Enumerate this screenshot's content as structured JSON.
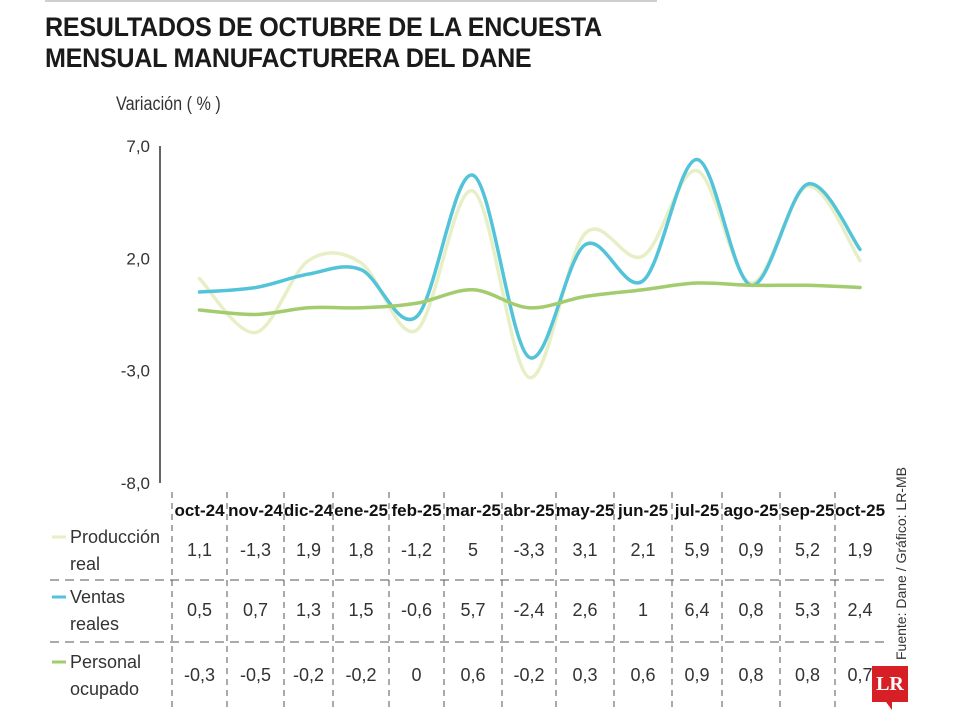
{
  "title_line1": "RESULTADOS DE OCTUBRE DE LA ENCUESTA",
  "title_line2": "MENSUAL MANUFACTURERA DEL DANE",
  "source": "Fuente: Dane / Gráfico: LR-MB",
  "logo": "LR",
  "chart_data": {
    "type": "line",
    "ylabel": "Variación ( % )",
    "ylim": [
      -8.0,
      7.0
    ],
    "yticks": [
      "7,0",
      "2,0",
      "-3,0",
      "-8,0"
    ],
    "yticks_values": [
      7,
      2,
      -3,
      -8
    ],
    "categories": [
      "oct-24",
      "nov-24",
      "dic-24",
      "ene-25",
      "feb-25",
      "mar-25",
      "abr-25",
      "may-25",
      "jun-25",
      "jul-25",
      "ago-25",
      "sep-25",
      "oct-25"
    ],
    "series": [
      {
        "name": "Producción real",
        "color": "#e6efc6",
        "values": [
          1.1,
          -1.3,
          1.9,
          1.8,
          -1.2,
          5,
          -3.3,
          3.1,
          2.1,
          5.9,
          0.9,
          5.2,
          1.9
        ],
        "labels": [
          "1,1",
          "-1,3",
          "1,9",
          "1,8",
          "-1,2",
          "5",
          "-3,3",
          "3,1",
          "2,1",
          "5,9",
          "0,9",
          "5,2",
          "1,9"
        ]
      },
      {
        "name": "Ventas reales",
        "color": "#52c3d9",
        "values": [
          0.5,
          0.7,
          1.3,
          1.5,
          -0.6,
          5.7,
          -2.4,
          2.6,
          1,
          6.4,
          0.8,
          5.3,
          2.4
        ],
        "labels": [
          "0,5",
          "0,7",
          "1,3",
          "1,5",
          "-0,6",
          "5,7",
          "-2,4",
          "2,6",
          "1",
          "6,4",
          "0,8",
          "5,3",
          "2,4"
        ]
      },
      {
        "name": "Personal ocupado",
        "color": "#a3cc6e",
        "values": [
          -0.3,
          -0.5,
          -0.2,
          -0.2,
          0,
          0.6,
          -0.2,
          0.3,
          0.6,
          0.9,
          0.8,
          0.8,
          0.7
        ],
        "labels": [
          "-0,3",
          "-0,5",
          "-0,2",
          "-0,2",
          "0",
          "0,6",
          "-0,2",
          "0,3",
          "0,6",
          "0,9",
          "0,8",
          "0,8",
          "0,7"
        ]
      }
    ],
    "legend_lines": [
      [
        "Producción",
        "real"
      ],
      [
        "Ventas",
        "reales"
      ],
      [
        "Personal",
        "ocupado"
      ]
    ],
    "grid": false,
    "legend": "left-table"
  }
}
